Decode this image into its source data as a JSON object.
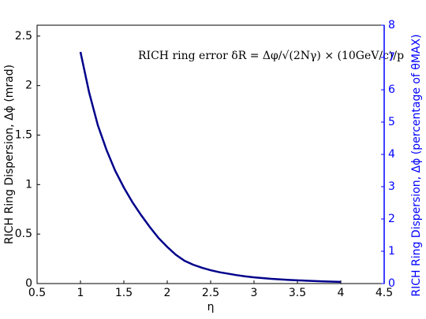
{
  "chart_data": {
    "type": "line",
    "annotation": "RICH ring error δR = Δφ/√(2Nγ) × (10GeV/c)/p",
    "x_label": "η",
    "y_label": "RICH Ring Dispersion, Δϕ (mrad)",
    "y2_label": "RICH Ring Dispersion, Δϕ (percentage of θMAX)",
    "x": [
      1.0,
      1.1,
      1.2,
      1.3,
      1.4,
      1.5,
      1.6,
      1.7,
      1.8,
      1.9,
      2.0,
      2.1,
      2.2,
      2.3,
      2.4,
      2.5,
      2.6,
      2.7,
      2.8,
      2.9,
      3.0,
      3.2,
      3.4,
      3.6,
      3.8,
      4.0
    ],
    "series": [
      {
        "color": "#00008b",
        "values": [
          2.34,
          1.93,
          1.6,
          1.35,
          1.14,
          0.97,
          0.82,
          0.69,
          0.57,
          0.46,
          0.37,
          0.29,
          0.23,
          0.19,
          0.16,
          0.135,
          0.115,
          0.1,
          0.085,
          0.073,
          0.063,
          0.048,
          0.037,
          0.029,
          0.022,
          0.017
        ]
      }
    ],
    "xlim": [
      0.5,
      4.5
    ],
    "xticks": [
      0.5,
      1,
      1.5,
      2,
      2.5,
      3,
      3.5,
      4,
      4.5
    ],
    "ylim": [
      0,
      2.61
    ],
    "yticks": [
      0,
      0.5,
      1,
      1.5,
      2,
      2.5
    ],
    "y2lim": [
      0,
      8
    ],
    "y2ticks": [
      0,
      1,
      2,
      3,
      4,
      5,
      6,
      7,
      8
    ],
    "y2_color": "#0000ff"
  }
}
